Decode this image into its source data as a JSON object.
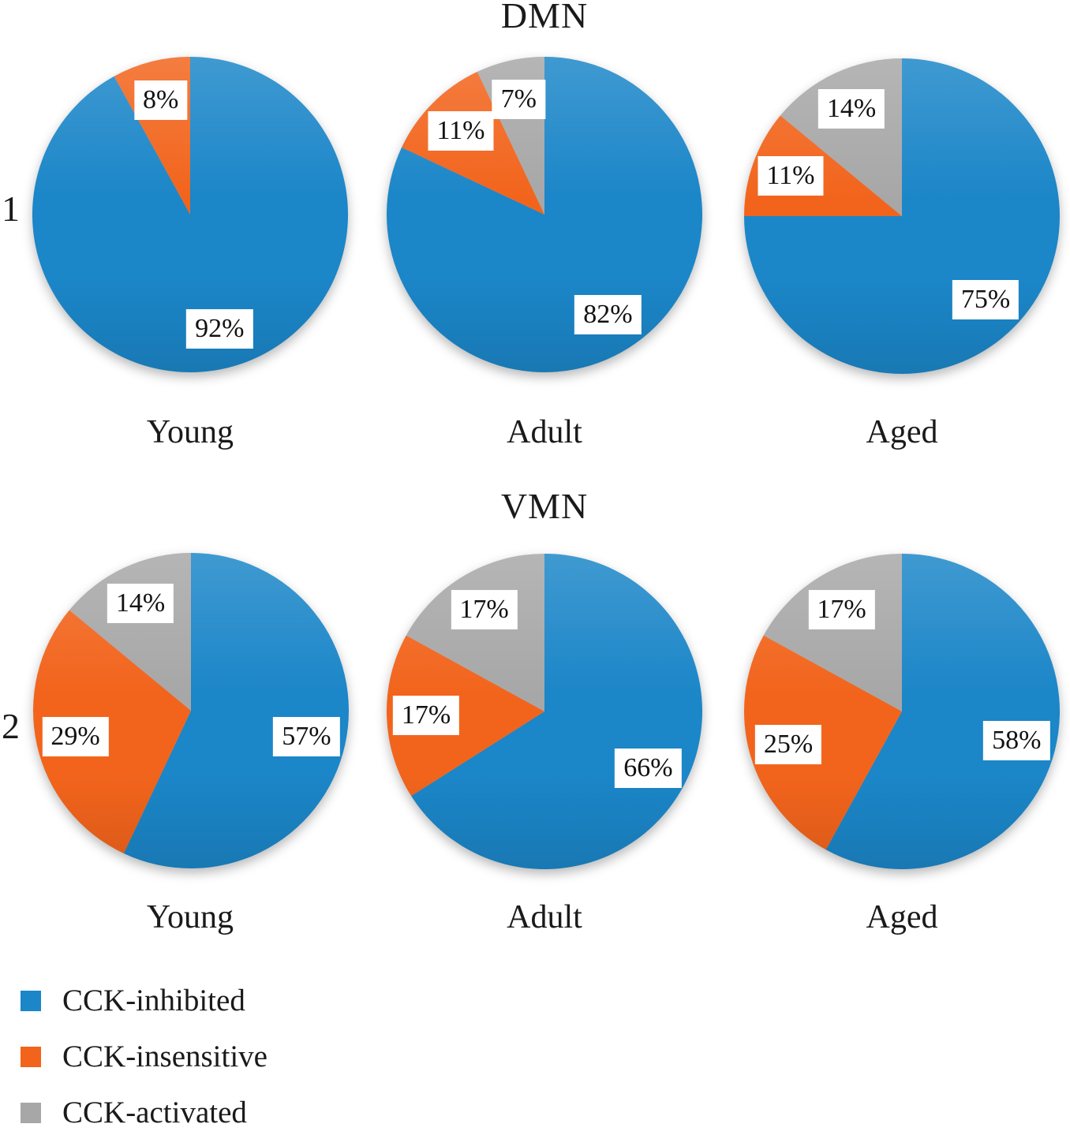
{
  "figure": {
    "background": "#ffffff",
    "rows": [
      {
        "row_number": "1",
        "title": "DMN",
        "categories": [
          "Young",
          "Adult",
          "Aged"
        ]
      },
      {
        "row_number": "2",
        "title": "VMN",
        "categories": [
          "Young",
          "Adult",
          "Aged"
        ]
      }
    ]
  },
  "legend": {
    "position": "bottom-left",
    "items": [
      {
        "label": "CCK-inhibited",
        "color": "#1b86c8"
      },
      {
        "label": "CCK-insensitive",
        "color": "#f2641c"
      },
      {
        "label": "CCK-activated",
        "color": "#a7a7a7"
      }
    ]
  },
  "chart_data": [
    {
      "type": "pie",
      "group": "DMN",
      "category": "Young",
      "direction": "clockwise",
      "start_angle_deg": 0,
      "slices": [
        {
          "name": "CCK-inhibited",
          "value": 92,
          "label": "92%"
        },
        {
          "name": "CCK-insensitive",
          "value": 8,
          "label": "8%"
        }
      ]
    },
    {
      "type": "pie",
      "group": "DMN",
      "category": "Adult",
      "direction": "clockwise",
      "start_angle_deg": 0,
      "slices": [
        {
          "name": "CCK-inhibited",
          "value": 82,
          "label": "82%"
        },
        {
          "name": "CCK-insensitive",
          "value": 11,
          "label": "11%"
        },
        {
          "name": "CCK-activated",
          "value": 7,
          "label": "7%"
        }
      ]
    },
    {
      "type": "pie",
      "group": "DMN",
      "category": "Aged",
      "direction": "clockwise",
      "start_angle_deg": 0,
      "slices": [
        {
          "name": "CCK-inhibited",
          "value": 75,
          "label": "75%"
        },
        {
          "name": "CCK-insensitive",
          "value": 11,
          "label": "11%"
        },
        {
          "name": "CCK-activated",
          "value": 14,
          "label": "14%"
        }
      ]
    },
    {
      "type": "pie",
      "group": "VMN",
      "category": "Young",
      "direction": "clockwise",
      "start_angle_deg": 0,
      "slices": [
        {
          "name": "CCK-inhibited",
          "value": 57,
          "label": "57%"
        },
        {
          "name": "CCK-insensitive",
          "value": 29,
          "label": "29%"
        },
        {
          "name": "CCK-activated",
          "value": 14,
          "label": "14%"
        }
      ]
    },
    {
      "type": "pie",
      "group": "VMN",
      "category": "Adult",
      "direction": "clockwise",
      "start_angle_deg": 0,
      "slices": [
        {
          "name": "CCK-inhibited",
          "value": 66,
          "label": "66%"
        },
        {
          "name": "CCK-insensitive",
          "value": 17,
          "label": "17%"
        },
        {
          "name": "CCK-activated",
          "value": 17,
          "label": "17%"
        }
      ]
    },
    {
      "type": "pie",
      "group": "VMN",
      "category": "Aged",
      "direction": "clockwise",
      "start_angle_deg": 0,
      "slices": [
        {
          "name": "CCK-inhibited",
          "value": 58,
          "label": "58%"
        },
        {
          "name": "CCK-insensitive",
          "value": 25,
          "label": "25%"
        },
        {
          "name": "CCK-activated",
          "value": 17,
          "label": "17%"
        }
      ]
    }
  ]
}
